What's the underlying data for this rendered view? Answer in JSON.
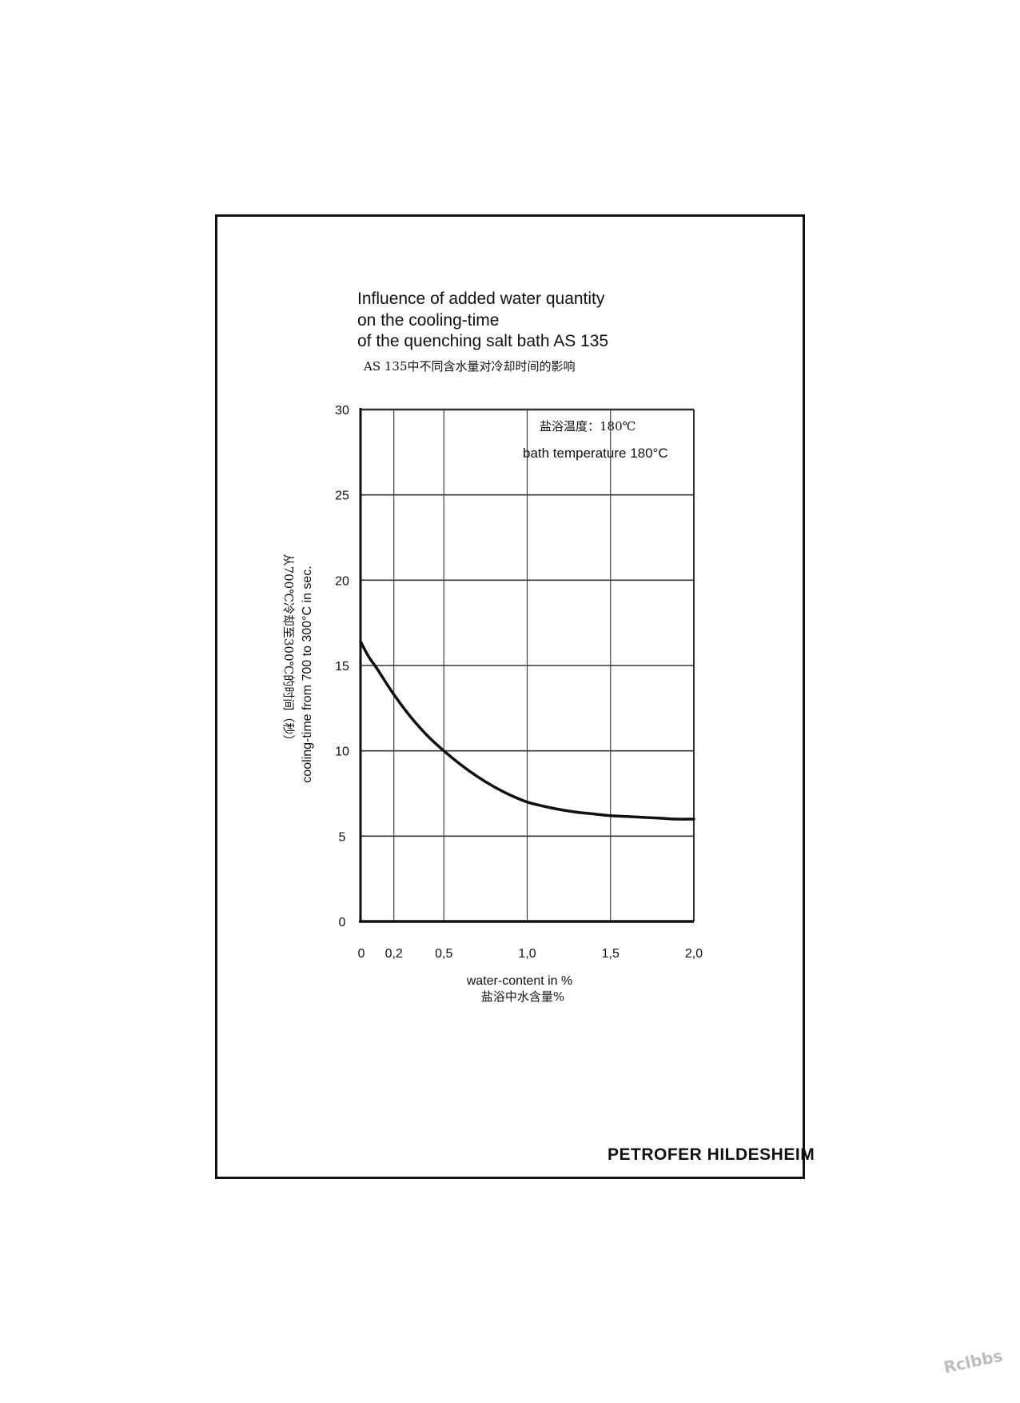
{
  "chart_data": {
    "type": "line",
    "title_lines": [
      "Influence of added water quantity",
      "on the cooling-time",
      "of the quenching salt bath AS 135"
    ],
    "title_cn": "AS 135中不同含水量对冷却时间的影响",
    "annotation_cn": "盐浴温度：180℃",
    "annotation_en": "bath temperature 180°C",
    "xlabel": "water-content in %",
    "xlabel_cn": "盐浴中水含量%",
    "ylabel": "cooling-time from 700 to 300°C in sec.",
    "ylabel_cn": "从700℃冷却至300℃的时间（秒）",
    "xlim": [
      0,
      2.0
    ],
    "ylim": [
      0,
      30
    ],
    "x_ticks": [
      0,
      0.2,
      0.5,
      1.0,
      1.5,
      2.0
    ],
    "x_tick_labels": [
      "0",
      "0,2",
      "0,5",
      "1,0",
      "1,5",
      "2,0"
    ],
    "y_ticks": [
      0,
      5,
      10,
      15,
      20,
      25,
      30
    ],
    "y_tick_labels": [
      "0",
      "5",
      "10",
      "15",
      "20",
      "25",
      "30"
    ],
    "grid": true,
    "series": [
      {
        "x": [
          0,
          0.05,
          0.1,
          0.2,
          0.3,
          0.4,
          0.5,
          0.6,
          0.7,
          0.8,
          0.9,
          1.0,
          1.1,
          1.2,
          1.3,
          1.4,
          1.5,
          1.6,
          1.7,
          1.8,
          1.9,
          2.0
        ],
        "y": [
          16.4,
          15.5,
          14.8,
          13.3,
          12.0,
          10.9,
          10.0,
          9.2,
          8.5,
          7.9,
          7.4,
          7.0,
          6.75,
          6.55,
          6.4,
          6.3,
          6.2,
          6.15,
          6.1,
          6.05,
          6.0,
          6.0
        ]
      }
    ]
  },
  "brand": "PETROFER HILDESHEIM",
  "watermark": "Rclbbs",
  "colors": {
    "ink": "#111111",
    "grid": "#333333"
  }
}
